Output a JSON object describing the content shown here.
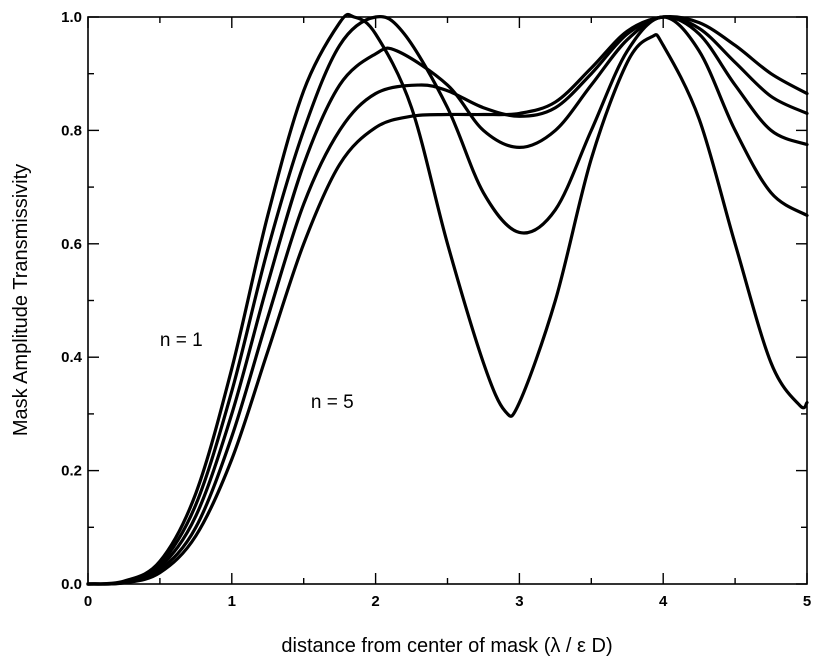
{
  "chart_data": {
    "type": "line",
    "title": "",
    "xlabel": "distance from center of mask (λ / ε D)",
    "ylabel": "Mask Amplitude Transmissivity",
    "xlim": [
      0,
      5
    ],
    "ylim": [
      0,
      1
    ],
    "x_ticks": [
      "0",
      "1",
      "2",
      "3",
      "4",
      "5"
    ],
    "y_ticks": [
      "0.0",
      "0.2",
      "0.4",
      "0.6",
      "0.8",
      "1.0"
    ],
    "x_minor_step": 0.5,
    "y_minor_step": 0.1,
    "grid": false,
    "legend": "none",
    "line_color": "#000000",
    "annotations": [
      {
        "text": "n = 1",
        "x": 0.5,
        "y": 0.42
      },
      {
        "text": "n = 5",
        "x": 1.55,
        "y": 0.31
      }
    ],
    "series": [
      {
        "x": [
          0,
          0.25,
          0.5,
          0.75,
          1.0,
          1.25,
          1.5,
          1.75,
          1.85,
          2.0,
          2.25,
          2.5,
          2.75,
          2.9,
          3.0,
          3.25,
          3.5,
          3.75,
          3.92,
          4.0,
          4.25,
          4.5,
          4.75,
          4.95,
          5.0
        ],
        "y": [
          0,
          0.005,
          0.04,
          0.16,
          0.38,
          0.65,
          0.87,
          0.99,
          1.0,
          0.97,
          0.84,
          0.6,
          0.39,
          0.305,
          0.32,
          0.5,
          0.75,
          0.92,
          0.965,
          0.95,
          0.82,
          0.6,
          0.39,
          0.315,
          0.32
        ]
      },
      {
        "x": [
          0,
          0.25,
          0.5,
          0.75,
          1.0,
          1.25,
          1.5,
          1.75,
          2.0,
          2.2,
          2.5,
          2.75,
          3.0,
          3.25,
          3.5,
          3.75,
          4.0,
          4.25,
          4.5,
          4.75,
          5.0
        ],
        "y": [
          0,
          0.004,
          0.035,
          0.14,
          0.34,
          0.59,
          0.8,
          0.95,
          1.0,
          0.97,
          0.84,
          0.69,
          0.62,
          0.66,
          0.8,
          0.94,
          1.0,
          0.94,
          0.8,
          0.69,
          0.65
        ]
      },
      {
        "x": [
          0,
          0.25,
          0.5,
          0.75,
          1.0,
          1.25,
          1.5,
          1.75,
          2.0,
          2.15,
          2.5,
          2.75,
          3.0,
          3.25,
          3.5,
          3.75,
          4.0,
          4.25,
          4.5,
          4.75,
          5.0
        ],
        "y": [
          0,
          0.003,
          0.03,
          0.12,
          0.3,
          0.53,
          0.74,
          0.88,
          0.935,
          0.94,
          0.88,
          0.8,
          0.77,
          0.8,
          0.88,
          0.96,
          1.0,
          0.97,
          0.88,
          0.8,
          0.775
        ]
      },
      {
        "x": [
          0,
          0.25,
          0.5,
          0.75,
          1.0,
          1.25,
          1.5,
          1.75,
          2.0,
          2.3,
          2.5,
          2.75,
          3.0,
          3.25,
          3.5,
          3.75,
          4.0,
          4.25,
          4.5,
          4.75,
          5.0
        ],
        "y": [
          0,
          0.0025,
          0.025,
          0.1,
          0.26,
          0.47,
          0.67,
          0.8,
          0.865,
          0.88,
          0.87,
          0.84,
          0.825,
          0.84,
          0.9,
          0.97,
          1.0,
          0.98,
          0.92,
          0.86,
          0.83
        ]
      },
      {
        "x": [
          0,
          0.25,
          0.5,
          0.75,
          1.0,
          1.25,
          1.5,
          1.75,
          2.0,
          2.25,
          2.5,
          2.75,
          3.0,
          3.25,
          3.5,
          3.75,
          4.0,
          4.25,
          4.5,
          4.75,
          5.0
        ],
        "y": [
          0,
          0.002,
          0.02,
          0.085,
          0.22,
          0.41,
          0.6,
          0.74,
          0.805,
          0.825,
          0.828,
          0.828,
          0.83,
          0.85,
          0.91,
          0.975,
          1.0,
          0.99,
          0.95,
          0.9,
          0.865
        ]
      }
    ]
  }
}
